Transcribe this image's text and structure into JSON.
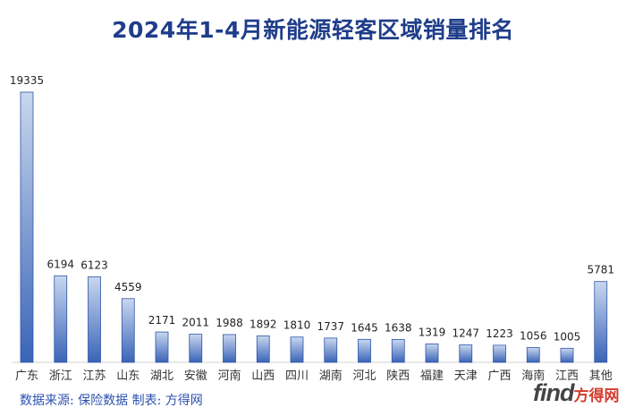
{
  "title": "2024年1-4月新能源轻客区域销量排名",
  "source_note": "数据来源: 保险数据 制表: 方得网",
  "logo": {
    "latin": "find",
    "cn": "方得网"
  },
  "colors": {
    "title": "#1f3d8a",
    "bar_top": "#c9d7ee",
    "bar_bottom": "#3a64b8",
    "bar_edge": "#2f56a8",
    "source": "#2d50b0",
    "logo_accent": "#d33a2c"
  },
  "chart_data": {
    "type": "bar",
    "title": "2024年1-4月新能源轻客区域销量排名",
    "xlabel": "",
    "ylabel": "",
    "ylim": [
      0,
      19335
    ],
    "grid": false,
    "categories": [
      "广东",
      "浙江",
      "江苏",
      "山东",
      "湖北",
      "安徽",
      "河南",
      "山西",
      "四川",
      "湖南",
      "河北",
      "陕西",
      "福建",
      "天津",
      "广西",
      "海南",
      "江西",
      "其他"
    ],
    "values": [
      19335,
      6194,
      6123,
      4559,
      2171,
      2011,
      1988,
      1892,
      1810,
      1737,
      1645,
      1638,
      1319,
      1247,
      1223,
      1056,
      1005,
      5781
    ],
    "data_labels": [
      "19335",
      "6194",
      "6123",
      "4559",
      "2171",
      "2011",
      "1988",
      "1892",
      "1810",
      "1737",
      "1645",
      "1638",
      "1319",
      "1247",
      "1223",
      "1056",
      "1005",
      "5781"
    ]
  }
}
